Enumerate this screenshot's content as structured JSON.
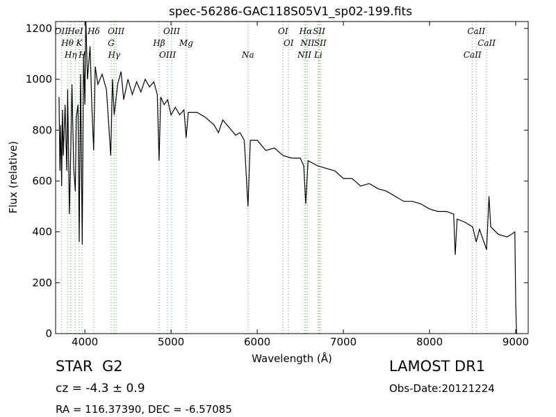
{
  "chart_data": {
    "type": "line",
    "title": "spec-56286-GAC118S05V1_sp02-199.fits",
    "x_label": "Wavelength (Å)",
    "y_label": "Flux (relative)",
    "xlim": [
      3660,
      9145
    ],
    "ylim": [
      0,
      1227
    ],
    "xticks": [
      4000,
      5000,
      6000,
      7000,
      8000,
      9000
    ],
    "yticks": [
      0,
      200,
      400,
      600,
      800,
      1000,
      1200
    ],
    "series": [
      {
        "color": "#000000",
        "x": [
          3700,
          3710,
          3720,
          3730,
          3740,
          3750,
          3770,
          3790,
          3800,
          3820,
          3835,
          3850,
          3870,
          3889,
          3900,
          3920,
          3934,
          3950,
          3969,
          3985,
          4000,
          4010,
          4030,
          4060,
          4080,
          4102,
          4120,
          4150,
          4200,
          4250,
          4300,
          4320,
          4340,
          4380,
          4420,
          4450,
          4500,
          4550,
          4600,
          4650,
          4700,
          4750,
          4800,
          4840,
          4861,
          4880,
          4920,
          4960,
          5000,
          5050,
          5100,
          5150,
          5175,
          5200,
          5300,
          5400,
          5500,
          5550,
          5600,
          5700,
          5750,
          5800,
          5850,
          5893,
          5920,
          6000,
          6100,
          6200,
          6300,
          6400,
          6500,
          6540,
          6563,
          6590,
          6700,
          6800,
          6900,
          7000,
          7100,
          7200,
          7300,
          7400,
          7500,
          7600,
          7700,
          7800,
          7900,
          8000,
          8100,
          8200,
          8280,
          8298,
          8320,
          8400,
          8500,
          8542,
          8580,
          8662,
          8690,
          8710,
          8800,
          8900,
          8950,
          8990,
          9000,
          9010
        ],
        "values": [
          930,
          640,
          820,
          580,
          880,
          700,
          900,
          640,
          960,
          470,
          700,
          980,
          650,
          560,
          850,
          900,
          360,
          1020,
          350,
          1100,
          900,
          1250,
          1000,
          1130,
          900,
          720,
          1050,
          980,
          1020,
          960,
          700,
          1000,
          860,
          980,
          1030,
          920,
          1000,
          940,
          990,
          950,
          1000,
          970,
          990,
          940,
          680,
          930,
          900,
          920,
          860,
          890,
          860,
          880,
          770,
          870,
          870,
          850,
          820,
          790,
          840,
          800,
          780,
          790,
          760,
          500,
          760,
          760,
          720,
          730,
          700,
          690,
          690,
          660,
          510,
          680,
          660,
          650,
          640,
          610,
          610,
          580,
          590,
          570,
          560,
          540,
          520,
          520,
          510,
          490,
          480,
          480,
          470,
          310,
          450,
          440,
          420,
          360,
          410,
          330,
          540,
          420,
          390,
          380,
          390,
          400,
          120,
          0
        ]
      }
    ],
    "spectral_line_color": "#5cb85c",
    "spectral_lines": [
      {
        "label": "OII",
        "x": 3727
      },
      {
        "label": "Hθ",
        "x": 3798
      },
      {
        "label": "Hη",
        "x": 3835
      },
      {
        "label": "HeI",
        "x": 3889
      },
      {
        "label": "K",
        "x": 3934
      },
      {
        "label": "H",
        "x": 3969
      },
      {
        "label": "Hδ",
        "x": 4102
      },
      {
        "label": "G",
        "x": 4305
      },
      {
        "label": "Hγ",
        "x": 4340
      },
      {
        "label": "OIII",
        "x": 4363
      },
      {
        "label": "Hβ",
        "x": 4861
      },
      {
        "label": "OIII",
        "x": 4959
      },
      {
        "label": "OIII",
        "x": 5007
      },
      {
        "label": "Mg",
        "x": 5175
      },
      {
        "label": "Na",
        "x": 5893
      },
      {
        "label": "OI",
        "x": 6300
      },
      {
        "label": "OI",
        "x": 6364
      },
      {
        "label": "NII",
        "x": 6548
      },
      {
        "label": "Hα",
        "x": 6563
      },
      {
        "label": "NII",
        "x": 6583
      },
      {
        "label": "Li",
        "x": 6708
      },
      {
        "label": "SII",
        "x": 6717
      },
      {
        "label": "SII",
        "x": 6731
      },
      {
        "label": "CaII",
        "x": 8498
      },
      {
        "label": "CaII",
        "x": 8542
      },
      {
        "label": "CaII",
        "x": 8662
      }
    ]
  },
  "footer": {
    "class": "STAR",
    "subclass": "G2",
    "redshift": "cz = -4.3 ± 0.9",
    "survey": "LAMOST DR1",
    "obs_date": "Obs-Date:20121224",
    "coords": "RA = 116.37390, DEC = -6.57085"
  }
}
